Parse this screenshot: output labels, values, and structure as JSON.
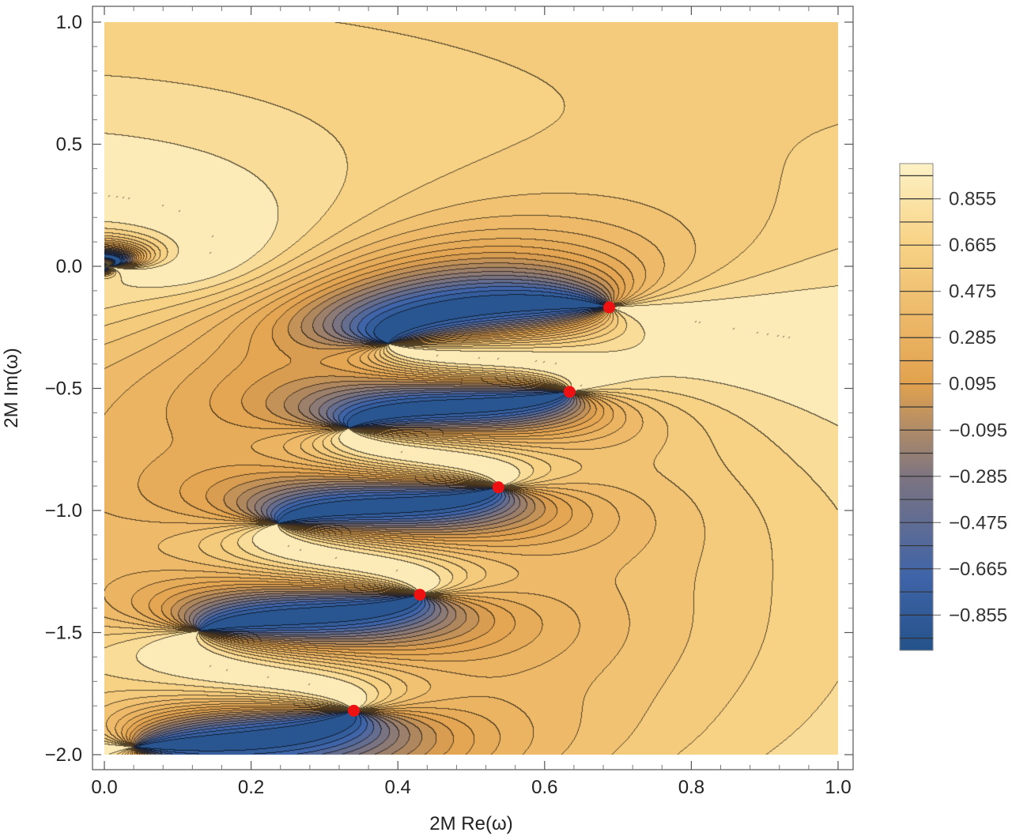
{
  "chart_data": {
    "type": "contour",
    "title": "",
    "xlabel": "2M Re(ω)",
    "ylabel": "2M Im(ω)",
    "xlim": [
      0.0,
      1.0
    ],
    "ylim": [
      -2.0,
      1.0
    ],
    "x_ticks": [
      "0.0",
      "0.2",
      "0.4",
      "0.6",
      "0.8",
      "1.0"
    ],
    "y_ticks": [
      "1.0",
      "0.5",
      "0.0",
      "−0.5",
      "−1.0",
      "−1.5",
      "−2.0"
    ],
    "x_tick_values": [
      0.0,
      0.2,
      0.4,
      0.6,
      0.8,
      1.0
    ],
    "y_tick_values": [
      1.0,
      0.5,
      0.0,
      -0.5,
      -1.0,
      -1.5,
      -2.0
    ],
    "grid": false,
    "colorbar": {
      "labels": [
        "0.855",
        "0.665",
        "0.475",
        "0.285",
        "0.095",
        "−0.095",
        "−0.285",
        "−0.475",
        "−0.665",
        "−0.855"
      ],
      "range": [
        -1.0,
        1.0
      ],
      "color_low": "#24528a",
      "color_mid": "#e2a24e",
      "color_high": "#fdf2c6"
    },
    "points": [
      {
        "x": 0.688,
        "y": -0.168
      },
      {
        "x": 0.634,
        "y": -0.514
      },
      {
        "x": 0.537,
        "y": -0.905
      },
      {
        "x": 0.43,
        "y": -1.345
      },
      {
        "x": 0.34,
        "y": -1.82
      }
    ],
    "point_color": "#ee1111"
  }
}
